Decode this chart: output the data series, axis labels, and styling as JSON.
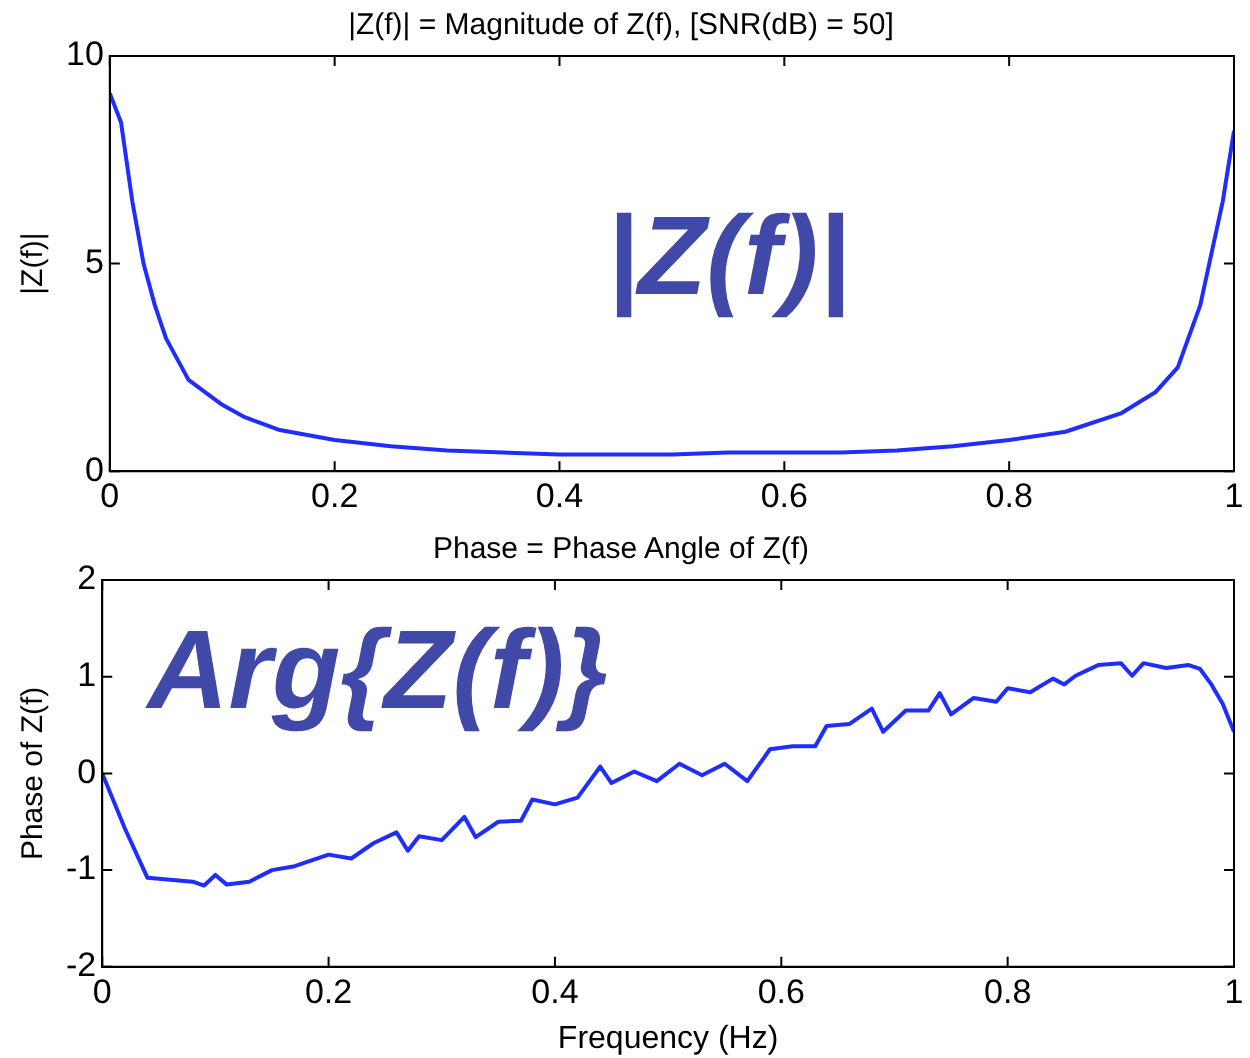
{
  "chart_data": [
    {
      "type": "line",
      "title": "|Z(f)| = Magnitude of Z(f), [SNR(dB) = 50]",
      "ylabel": "|Z(f)|",
      "annotations": [
        "|Z(f)|"
      ],
      "x": [
        0,
        0.01,
        0.02,
        0.03,
        0.04,
        0.05,
        0.07,
        0.1,
        0.12,
        0.15,
        0.2,
        0.25,
        0.3,
        0.35,
        0.4,
        0.45,
        0.5,
        0.55,
        0.6,
        0.65,
        0.7,
        0.75,
        0.8,
        0.85,
        0.9,
        0.93,
        0.95,
        0.97,
        0.99,
        1
      ],
      "series": [
        {
          "color": "#1f2dff",
          "values": [
            9.1,
            8.4,
            6.5,
            5.0,
            4.0,
            3.2,
            2.2,
            1.6,
            1.3,
            1.0,
            0.75,
            0.6,
            0.5,
            0.45,
            0.4,
            0.4,
            0.4,
            0.45,
            0.45,
            0.45,
            0.5,
            0.6,
            0.75,
            0.95,
            1.4,
            1.9,
            2.5,
            4.0,
            6.5,
            8.2
          ]
        }
      ],
      "xlim": [
        0,
        1
      ],
      "xticks": [
        0,
        0.2,
        0.4,
        0.6,
        0.8,
        1
      ],
      "ylim": [
        0,
        10
      ],
      "yticks": [
        0,
        5,
        10
      ],
      "grid": false,
      "legend": false
    },
    {
      "type": "line",
      "title": "Phase = Phase Angle of Z(f)",
      "xlabel": "Frequency (Hz)",
      "ylabel": "Phase of Z(f)",
      "annotations": [
        "Arg{Z(f)}"
      ],
      "x": [
        0,
        0.02,
        0.04,
        0.06,
        0.08,
        0.09,
        0.1,
        0.11,
        0.13,
        0.15,
        0.17,
        0.2,
        0.22,
        0.24,
        0.26,
        0.27,
        0.28,
        0.3,
        0.32,
        0.33,
        0.35,
        0.37,
        0.38,
        0.4,
        0.42,
        0.44,
        0.45,
        0.47,
        0.49,
        0.51,
        0.53,
        0.55,
        0.57,
        0.59,
        0.61,
        0.63,
        0.64,
        0.66,
        0.68,
        0.69,
        0.71,
        0.73,
        0.74,
        0.75,
        0.77,
        0.79,
        0.8,
        0.82,
        0.84,
        0.85,
        0.86,
        0.88,
        0.9,
        0.91,
        0.92,
        0.94,
        0.96,
        0.97,
        0.98,
        0.99,
        1
      ],
      "series": [
        {
          "color": "#1f2dff",
          "values": [
            0.0,
            -0.57,
            -1.08,
            -1.1,
            -1.12,
            -1.16,
            -1.05,
            -1.15,
            -1.12,
            -1.0,
            -0.96,
            -0.84,
            -0.88,
            -0.72,
            -0.61,
            -0.8,
            -0.65,
            -0.69,
            -0.45,
            -0.66,
            -0.5,
            -0.49,
            -0.27,
            -0.32,
            -0.25,
            0.07,
            -0.1,
            0.02,
            -0.08,
            0.1,
            -0.02,
            0.1,
            -0.08,
            0.25,
            0.28,
            0.28,
            0.49,
            0.51,
            0.67,
            0.43,
            0.65,
            0.65,
            0.83,
            0.61,
            0.78,
            0.74,
            0.88,
            0.84,
            0.98,
            0.92,
            1.01,
            1.12,
            1.14,
            1.01,
            1.14,
            1.09,
            1.12,
            1.08,
            0.92,
            0.72,
            0.43
          ]
        }
      ],
      "xlim": [
        0,
        1
      ],
      "xticks": [
        0,
        0.2,
        0.4,
        0.6,
        0.8,
        1
      ],
      "ylim": [
        -2,
        2
      ],
      "yticks": [
        -2,
        -1,
        0,
        1,
        2
      ],
      "grid": false,
      "legend": false
    }
  ]
}
